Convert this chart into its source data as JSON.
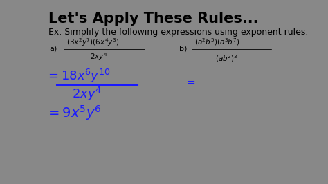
{
  "bg_color": "#ffffff",
  "outer_bg": "#888888",
  "title": "Let's Apply These Rules...",
  "subtitle": "Ex. Simplify the following expressions using exponent rules.",
  "title_color": "#000000",
  "title_fontsize": 15,
  "subtitle_fontsize": 9,
  "blue_color": "#1a1aff",
  "black_color": "#000000"
}
